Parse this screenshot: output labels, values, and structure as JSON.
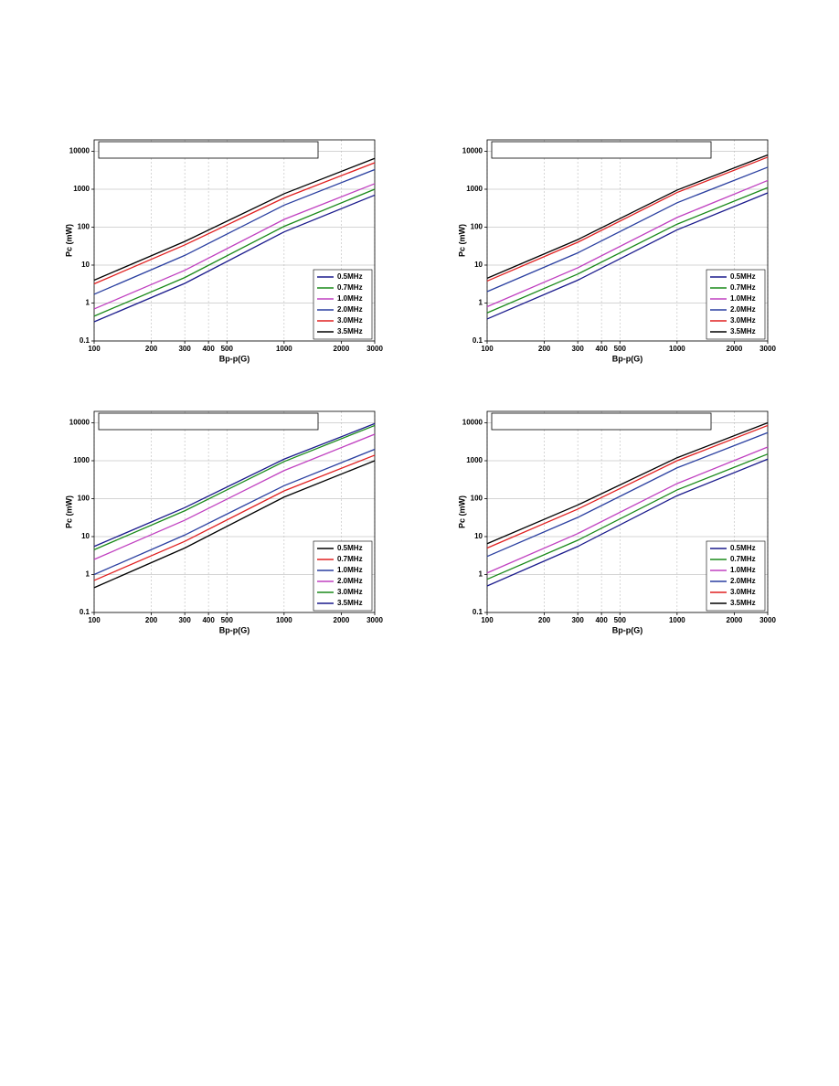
{
  "chart_data": [
    {
      "type": "line",
      "x_label": "Bp-p(G)",
      "y_label": "Pc (mW)",
      "log_x": true,
      "log_y": true,
      "grid": true,
      "legend": "lower right",
      "xlim": [
        100,
        3000
      ],
      "ylim": [
        0.1,
        20000
      ],
      "xticks": [
        100,
        200,
        300,
        400,
        500,
        1000,
        2000,
        3000
      ],
      "yticks": [
        0.1,
        1,
        10,
        100,
        1000,
        10000
      ],
      "x": [
        100,
        300,
        1000,
        3000
      ],
      "series": [
        {
          "name": "0.5MHz",
          "color": "#1a1a8c",
          "values": [
            0.32,
            3.3,
            75,
            700
          ]
        },
        {
          "name": "0.7MHz",
          "color": "#1a8a1a",
          "values": [
            0.45,
            4.7,
            105,
            1000
          ]
        },
        {
          "name": "1.0MHz",
          "color": "#c040c0",
          "values": [
            0.7,
            7.3,
            160,
            1400
          ]
        },
        {
          "name": "2.0MHz",
          "color": "#2a3fa0",
          "values": [
            1.7,
            18,
            380,
            3300
          ]
        },
        {
          "name": "3.0MHz",
          "color": "#e02020",
          "values": [
            3.2,
            34,
            590,
            5000
          ]
        },
        {
          "name": "3.5MHz",
          "color": "#000000",
          "values": [
            4,
            42,
            760,
            6500
          ]
        }
      ]
    },
    {
      "type": "line",
      "x_label": "Bp-p(G)",
      "y_label": "Pc (mW)",
      "log_x": true,
      "log_y": true,
      "grid": true,
      "legend": "lower right",
      "xlim": [
        100,
        3000
      ],
      "ylim": [
        0.1,
        20000
      ],
      "xticks": [
        100,
        200,
        300,
        400,
        500,
        1000,
        2000,
        3000
      ],
      "yticks": [
        0.1,
        1,
        10,
        100,
        1000,
        10000
      ],
      "x": [
        100,
        300,
        1000,
        3000
      ],
      "series": [
        {
          "name": "0.5MHz",
          "color": "#1a1a8c",
          "values": [
            0.38,
            4,
            85,
            800
          ]
        },
        {
          "name": "0.7MHz",
          "color": "#1a8a1a",
          "values": [
            0.55,
            5.8,
            120,
            1100
          ]
        },
        {
          "name": "1.0MHz",
          "color": "#c040c0",
          "values": [
            0.8,
            8.5,
            180,
            1700
          ]
        },
        {
          "name": "2.0MHz",
          "color": "#2a3fa0",
          "values": [
            2,
            21,
            440,
            3800
          ]
        },
        {
          "name": "3.0MHz",
          "color": "#e02020",
          "values": [
            3.8,
            40,
            820,
            7000
          ]
        },
        {
          "name": "3.5MHz",
          "color": "#000000",
          "values": [
            4.5,
            47,
            950,
            8000
          ]
        }
      ]
    },
    {
      "type": "line",
      "x_label": "Bp-p(G)",
      "y_label": "Pc (mW)",
      "log_x": true,
      "log_y": true,
      "grid": true,
      "legend": "lower right",
      "xlim": [
        100,
        3000
      ],
      "ylim": [
        0.1,
        20000
      ],
      "xticks": [
        100,
        200,
        300,
        400,
        500,
        1000,
        2000,
        3000
      ],
      "yticks": [
        0.1,
        1,
        10,
        100,
        1000,
        10000
      ],
      "x": [
        100,
        300,
        1000,
        3000
      ],
      "series": [
        {
          "name": "0.5MHz",
          "color": "#000000",
          "values": [
            0.45,
            5,
            110,
            1000
          ]
        },
        {
          "name": "0.7MHz",
          "color": "#e02020",
          "values": [
            0.7,
            7.5,
            160,
            1400
          ]
        },
        {
          "name": "1.0MHz",
          "color": "#2a3fa0",
          "values": [
            1,
            11,
            220,
            2000
          ]
        },
        {
          "name": "2.0MHz",
          "color": "#c040c0",
          "values": [
            2.5,
            27,
            550,
            5000
          ]
        },
        {
          "name": "3.0MHz",
          "color": "#1a8a1a",
          "values": [
            4.5,
            48,
            950,
            8500
          ]
        },
        {
          "name": "3.5MHz",
          "color": "#1a1a8c",
          "values": [
            5.5,
            58,
            1100,
            9500
          ]
        }
      ]
    },
    {
      "type": "line",
      "x_label": "Bp-p(G)",
      "y_label": "Pc (mW)",
      "log_x": true,
      "log_y": true,
      "grid": true,
      "legend": "lower right",
      "xlim": [
        100,
        3000
      ],
      "ylim": [
        0.1,
        20000
      ],
      "xticks": [
        100,
        200,
        300,
        400,
        500,
        1000,
        2000,
        3000
      ],
      "yticks": [
        0.1,
        1,
        10,
        100,
        1000,
        10000
      ],
      "x": [
        100,
        300,
        1000,
        3000
      ],
      "series": [
        {
          "name": "0.5MHz",
          "color": "#1a1a8c",
          "values": [
            0.5,
            5.5,
            120,
            1100
          ]
        },
        {
          "name": "0.7MHz",
          "color": "#1a8a1a",
          "values": [
            0.75,
            8,
            170,
            1500
          ]
        },
        {
          "name": "1.0MHz",
          "color": "#c040c0",
          "values": [
            1.1,
            12,
            250,
            2300
          ]
        },
        {
          "name": "2.0MHz",
          "color": "#2a3fa0",
          "values": [
            3,
            32,
            650,
            5500
          ]
        },
        {
          "name": "3.0MHz",
          "color": "#e02020",
          "values": [
            5,
            53,
            1000,
            8500
          ]
        },
        {
          "name": "3.5MHz",
          "color": "#000000",
          "values": [
            6.5,
            68,
            1200,
            10000
          ]
        }
      ]
    }
  ]
}
